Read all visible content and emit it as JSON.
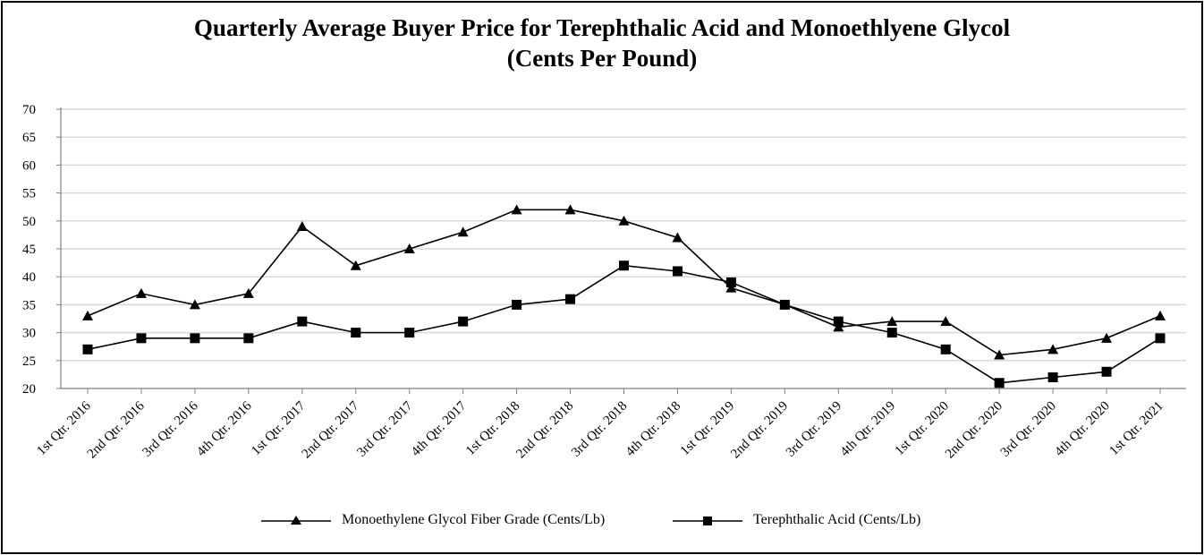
{
  "chart_data": {
    "type": "line",
    "title": "Quarterly Average Buyer Price for Terephthalic Acid and Monoethlyene Glycol",
    "subtitle": "(Cents Per Pound)",
    "categories": [
      "1st Qtr. 2016",
      "2nd Qtr. 2016",
      "3rd Qtr. 2016",
      "4th Qtr. 2016",
      "1st Qtr. 2017",
      "2nd Qtr. 2017",
      "3rd Qtr. 2017",
      "4th Qtr. 2017",
      "1st Qtr. 2018",
      "2nd Qtr. 2018",
      "3rd Qtr. 2018",
      "4th Qtr. 2018",
      "1st Qtr. 2019",
      "2nd Qtr. 2019",
      "3rd Qtr. 2019",
      "4th Qtr. 2019",
      "1st Qtr. 2020",
      "2nd Qtr. 2020",
      "3rd Qtr. 2020",
      "4th Qtr. 2020",
      "1st Qtr. 2021"
    ],
    "series": [
      {
        "name": "Monoethylene Glycol Fiber Grade (Cents/Lb)",
        "marker": "triangle",
        "values": [
          33,
          37,
          35,
          37,
          49,
          42,
          45,
          48,
          52,
          52,
          50,
          47,
          38,
          35,
          31,
          32,
          32,
          26,
          27,
          29,
          33
        ]
      },
      {
        "name": "Terephthalic Acid (Cents/Lb)",
        "marker": "square",
        "values": [
          27,
          29,
          29,
          29,
          32,
          30,
          30,
          32,
          35,
          36,
          42,
          41,
          39,
          35,
          32,
          30,
          27,
          21,
          22,
          23,
          29
        ]
      }
    ],
    "ylim": [
      20,
      70
    ],
    "yticks": [
      20,
      25,
      30,
      35,
      40,
      45,
      50,
      55,
      60,
      65,
      70
    ],
    "grid": true,
    "legend_position": "bottom-center",
    "colors": {
      "line": "#000000",
      "grid": "#d9d9d9",
      "axis": "#808080",
      "text": "#000000"
    }
  }
}
